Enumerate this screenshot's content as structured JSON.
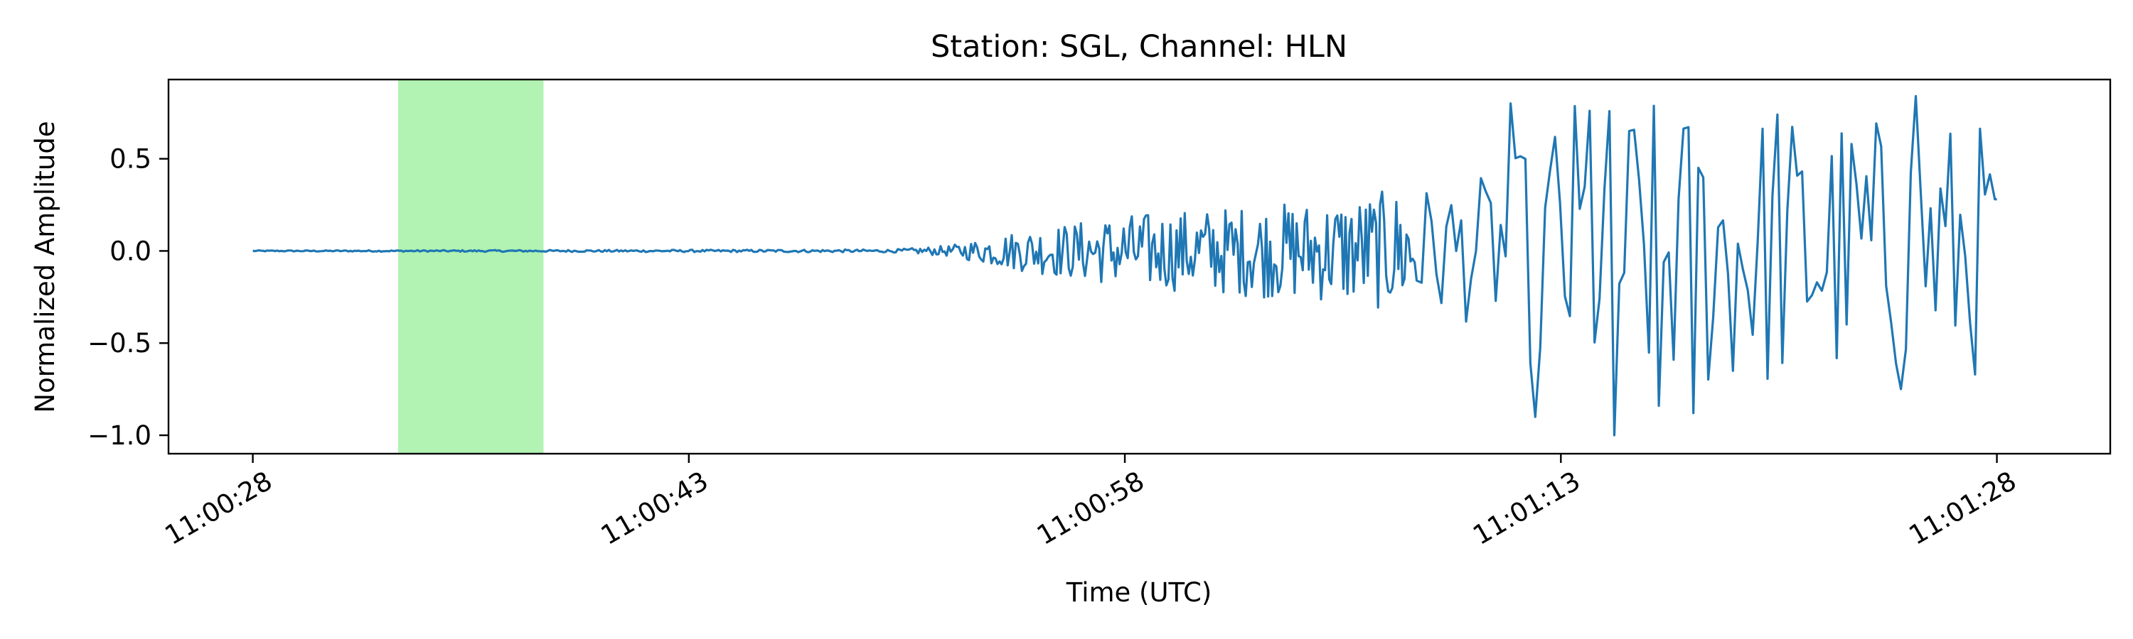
{
  "chart_data": {
    "type": "line",
    "title": "Station: SGL, Channel: HLN",
    "xlabel": "Time (UTC)",
    "ylabel": "Normalized Amplitude",
    "x_range_seconds_after_11:00:28": [
      -2.9,
      63.9
    ],
    "ylim": [
      -1.1,
      0.93
    ],
    "x_tick_labels": [
      "11:00:28",
      "11:00:43",
      "11:00:58",
      "11:01:13",
      "11:01:28"
    ],
    "y_ticks": [
      0.5,
      0.0,
      -0.5,
      -1.0
    ],
    "y_tick_labels": [
      "0.5",
      "0.0",
      "−0.5",
      "−1.0"
    ],
    "highlight_window": {
      "start": "11:00:33",
      "end": "11:00:38",
      "color": "#b2f2b2"
    },
    "grid": false,
    "series": [
      {
        "color": "#1f77b4",
        "start": "11:00:28",
        "end": "11:01:28",
        "amplitude_envelope": [
          {
            "t": "11:00:28",
            "amp": 0.003
          },
          {
            "t": "11:00:50",
            "amp": 0.008
          },
          {
            "t": "11:00:52",
            "amp": 0.03
          },
          {
            "t": "11:00:54",
            "amp": 0.1
          },
          {
            "t": "11:00:58",
            "amp": 0.2
          },
          {
            "t": "11:01:05",
            "amp": 0.28
          },
          {
            "t": "11:01:11",
            "amp": 0.42
          },
          {
            "t": "11:01:13",
            "amp": 0.85
          },
          {
            "t": "11:01:28",
            "amp": 0.7
          }
        ],
        "peaks": [
          {
            "t": "11:01:11.3",
            "y": 0.8
          },
          {
            "t": "11:01:12.1",
            "y": -0.9
          },
          {
            "t": "11:01:14.0",
            "y": 0.76
          },
          {
            "t": "11:01:14.8",
            "y": -1.0
          },
          {
            "t": "11:01:16.3",
            "y": -0.84
          },
          {
            "t": "11:01:17.6",
            "y": -0.88
          },
          {
            "t": "11:01:20.5",
            "y": 0.74
          },
          {
            "t": "11:01:25.2",
            "y": 0.84
          },
          {
            "t": "11:01:24.7",
            "y": -0.75
          },
          {
            "t": "11:01:28",
            "y": 0.28
          }
        ]
      }
    ]
  }
}
